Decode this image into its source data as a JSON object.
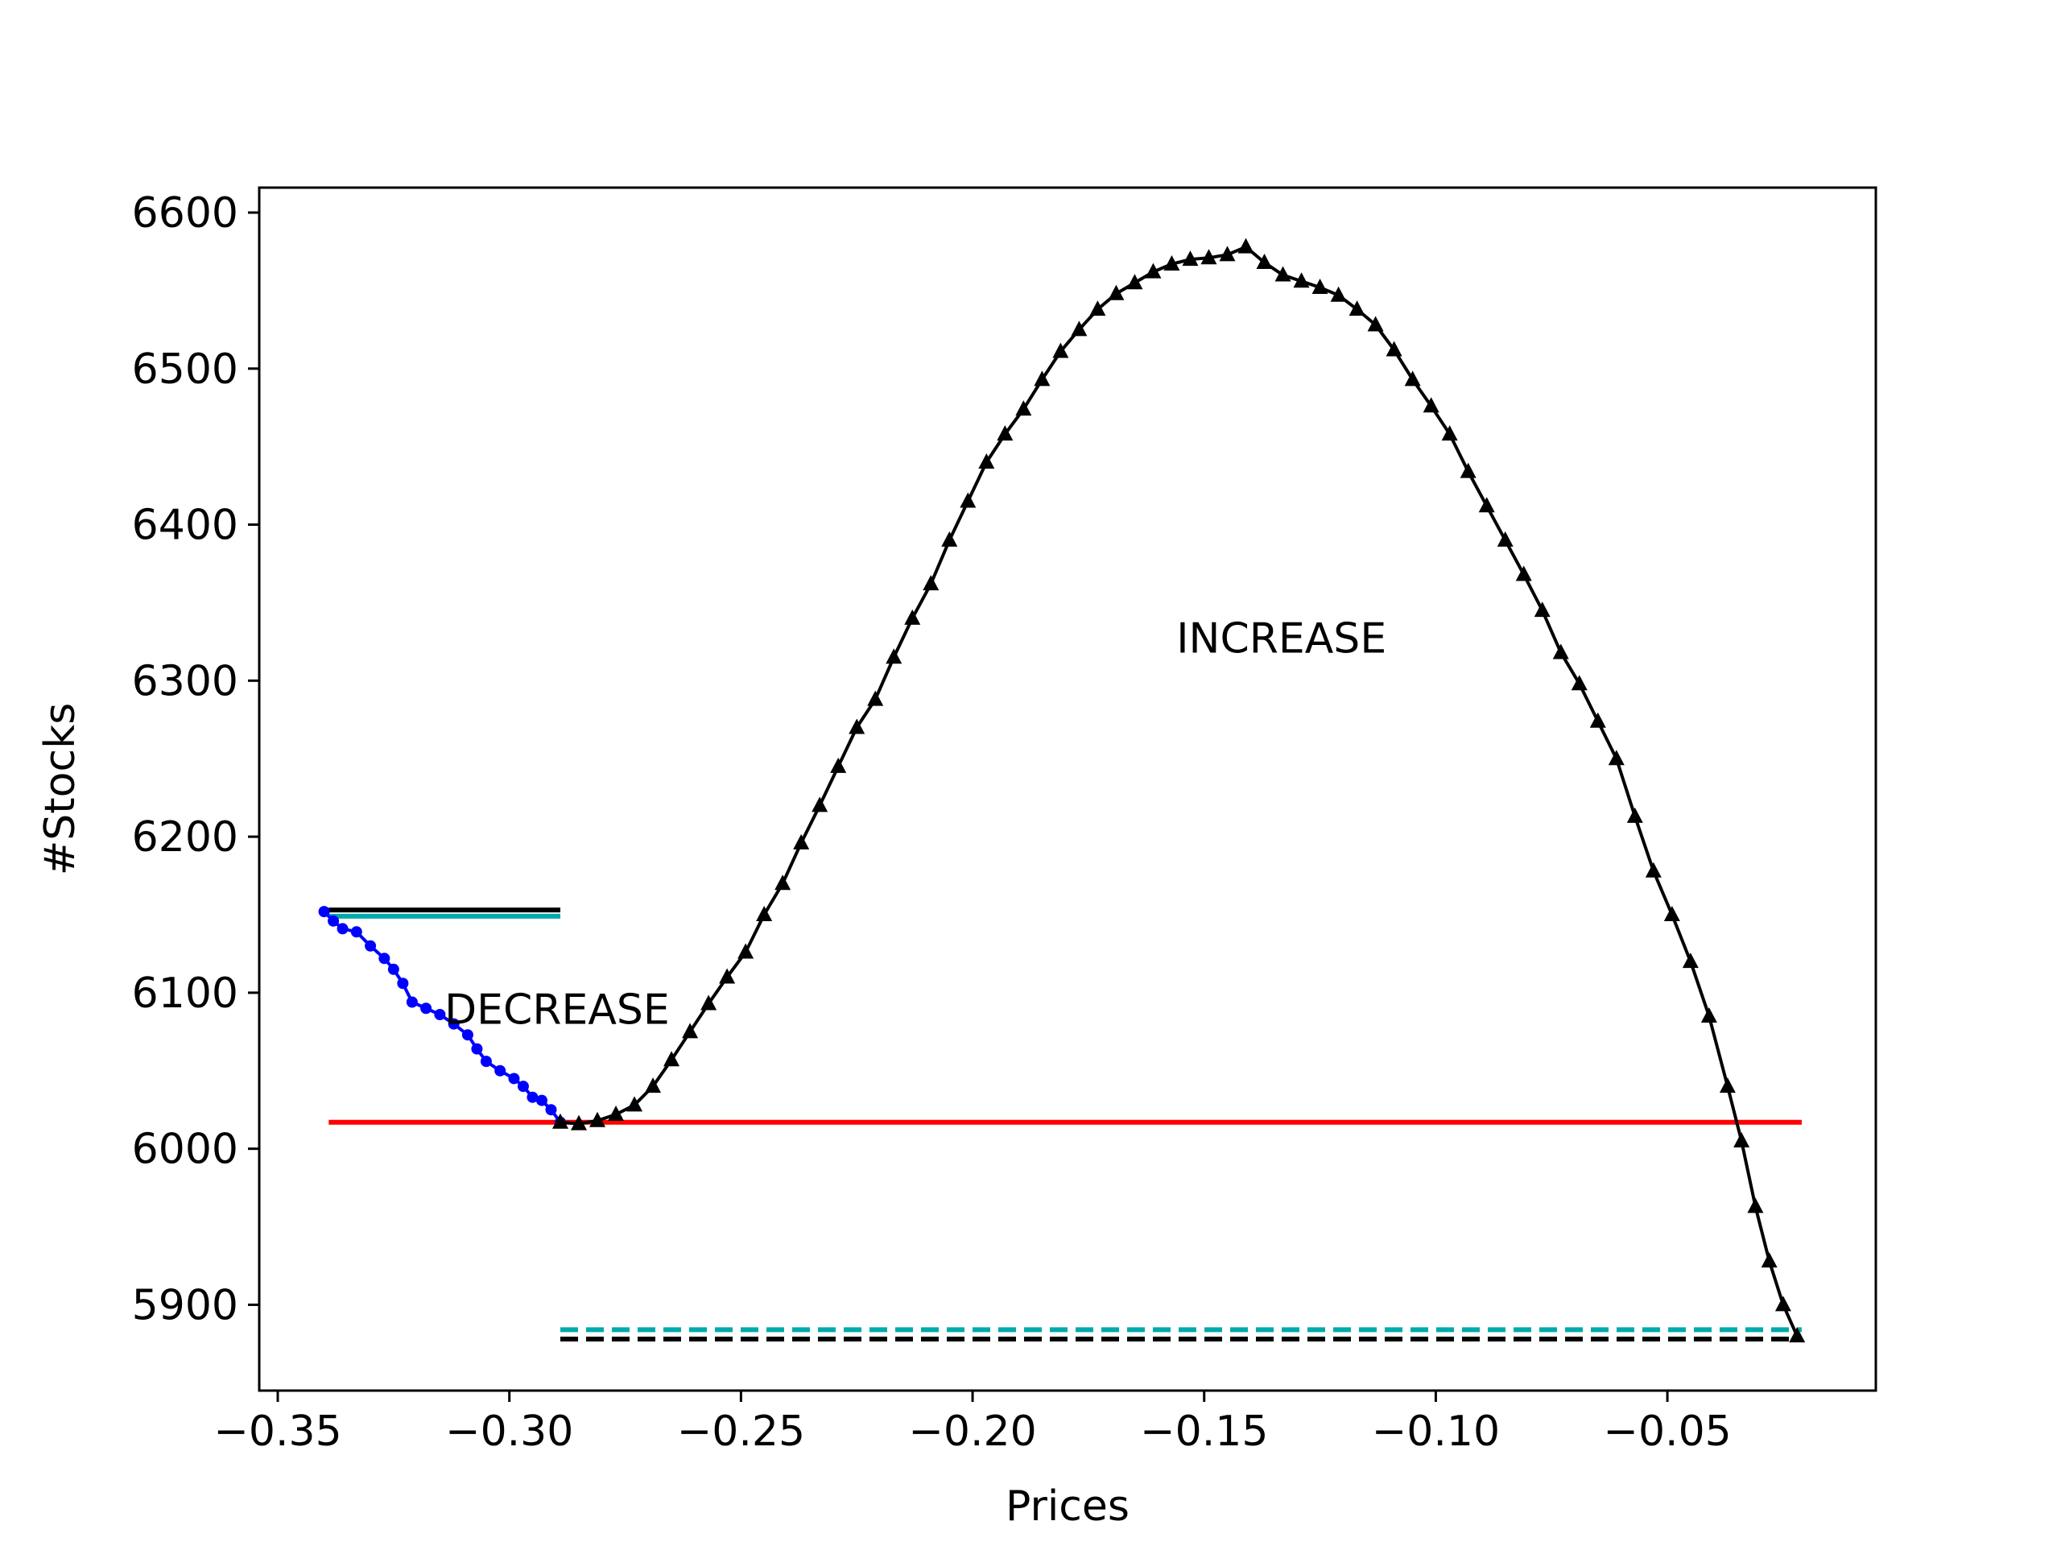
{
  "chart_data": {
    "type": "scatter",
    "title": "",
    "xlabel": "Prices",
    "ylabel": "#Stocks",
    "xlim": [
      -0.354,
      -0.005
    ],
    "ylim": [
      5845,
      6616
    ],
    "xticks": [
      -0.35,
      -0.3,
      -0.25,
      -0.2,
      -0.15,
      -0.1,
      -0.05
    ],
    "xtick_labels": [
      "−0.35",
      "−0.30",
      "−0.25",
      "−0.20",
      "−0.15",
      "−0.10",
      "−0.05"
    ],
    "yticks": [
      5900,
      6000,
      6100,
      6200,
      6300,
      6400,
      6500,
      6600
    ],
    "ytick_labels": [
      "5900",
      "6000",
      "6100",
      "6200",
      "6300",
      "6400",
      "6500",
      "6600"
    ],
    "grid": false,
    "colors": {
      "decrease": "#0000ff",
      "increase": "#000000",
      "baseline": "#ff0000",
      "cyan": "#00aaaa",
      "black": "#000000"
    },
    "annotations": [
      {
        "text": "DECREASE",
        "x": -0.314,
        "y": 6080
      },
      {
        "text": "INCREASE",
        "x": -0.156,
        "y": 6318
      }
    ],
    "series": [
      {
        "marker": "dot",
        "color": "#0000ff",
        "points": [
          [
            -0.34,
            6152
          ],
          [
            -0.338,
            6146
          ],
          [
            -0.336,
            6141
          ],
          [
            -0.333,
            6139
          ],
          [
            -0.33,
            6130
          ],
          [
            -0.327,
            6122
          ],
          [
            -0.325,
            6115
          ],
          [
            -0.323,
            6106
          ],
          [
            -0.321,
            6094
          ],
          [
            -0.318,
            6090
          ],
          [
            -0.315,
            6086
          ],
          [
            -0.312,
            6080
          ],
          [
            -0.309,
            6073
          ],
          [
            -0.307,
            6064
          ],
          [
            -0.305,
            6056
          ],
          [
            -0.302,
            6050
          ],
          [
            -0.299,
            6045
          ],
          [
            -0.297,
            6040
          ],
          [
            -0.295,
            6033
          ],
          [
            -0.293,
            6031
          ],
          [
            -0.291,
            6025
          ],
          [
            -0.289,
            6017
          ]
        ]
      },
      {
        "marker": "triangle",
        "color": "#000000",
        "points": [
          [
            -0.289,
            6017
          ],
          [
            -0.285,
            6016
          ],
          [
            -0.281,
            6018
          ],
          [
            -0.277,
            6022
          ],
          [
            -0.273,
            6028
          ],
          [
            -0.269,
            6040
          ],
          [
            -0.265,
            6057
          ],
          [
            -0.261,
            6075
          ],
          [
            -0.257,
            6093
          ],
          [
            -0.253,
            6110
          ],
          [
            -0.249,
            6126
          ],
          [
            -0.245,
            6150
          ],
          [
            -0.241,
            6170
          ],
          [
            -0.237,
            6196
          ],
          [
            -0.233,
            6220
          ],
          [
            -0.229,
            6245
          ],
          [
            -0.225,
            6270
          ],
          [
            -0.221,
            6288
          ],
          [
            -0.217,
            6315
          ],
          [
            -0.213,
            6340
          ],
          [
            -0.209,
            6362
          ],
          [
            -0.205,
            6390
          ],
          [
            -0.201,
            6415
          ],
          [
            -0.197,
            6440
          ],
          [
            -0.193,
            6458
          ],
          [
            -0.189,
            6474
          ],
          [
            -0.185,
            6493
          ],
          [
            -0.181,
            6511
          ],
          [
            -0.177,
            6525
          ],
          [
            -0.173,
            6538
          ],
          [
            -0.169,
            6548
          ],
          [
            -0.165,
            6555
          ],
          [
            -0.161,
            6562
          ],
          [
            -0.157,
            6567
          ],
          [
            -0.153,
            6570
          ],
          [
            -0.149,
            6571
          ],
          [
            -0.145,
            6573
          ],
          [
            -0.141,
            6578
          ],
          [
            -0.137,
            6568
          ],
          [
            -0.133,
            6560
          ],
          [
            -0.129,
            6556
          ],
          [
            -0.125,
            6552
          ],
          [
            -0.121,
            6547
          ],
          [
            -0.117,
            6538
          ],
          [
            -0.113,
            6528
          ],
          [
            -0.109,
            6512
          ],
          [
            -0.105,
            6493
          ],
          [
            -0.101,
            6476
          ],
          [
            -0.097,
            6458
          ],
          [
            -0.093,
            6434
          ],
          [
            -0.089,
            6412
          ],
          [
            -0.085,
            6390
          ],
          [
            -0.081,
            6368
          ],
          [
            -0.077,
            6345
          ],
          [
            -0.073,
            6318
          ],
          [
            -0.069,
            6298
          ],
          [
            -0.065,
            6274
          ],
          [
            -0.061,
            6250
          ],
          [
            -0.057,
            6213
          ],
          [
            -0.053,
            6178
          ],
          [
            -0.049,
            6150
          ],
          [
            -0.045,
            6120
          ],
          [
            -0.041,
            6085
          ],
          [
            -0.037,
            6040
          ],
          [
            -0.034,
            6005
          ],
          [
            -0.031,
            5963
          ],
          [
            -0.028,
            5928
          ],
          [
            -0.025,
            5900
          ],
          [
            -0.022,
            5880
          ]
        ]
      }
    ],
    "hlines": [
      {
        "y": 6017,
        "x0": -0.339,
        "x1": -0.021,
        "color": "#ff0000",
        "style": "solid"
      },
      {
        "y": 6153,
        "x0": -0.339,
        "x1": -0.289,
        "color": "#000000",
        "style": "solid"
      },
      {
        "y": 6149,
        "x0": -0.339,
        "x1": -0.289,
        "color": "#00aaaa",
        "style": "solid"
      },
      {
        "y": 5884,
        "x0": -0.289,
        "x1": -0.021,
        "color": "#00aaaa",
        "style": "dashed"
      },
      {
        "y": 5878,
        "x0": -0.289,
        "x1": -0.021,
        "color": "#000000",
        "style": "dashed"
      }
    ]
  }
}
